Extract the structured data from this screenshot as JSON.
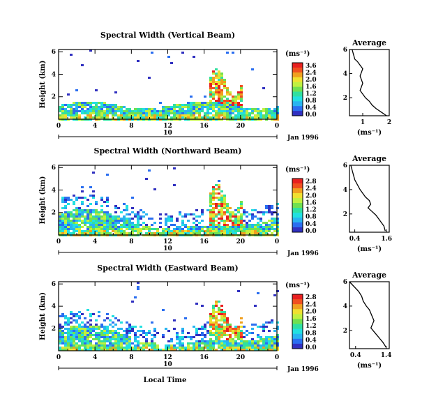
{
  "chart_data": [
    {
      "type": "heatmap",
      "title": "Spectral Width (Vertical Beam)",
      "ylabel": "Height (km)",
      "xlabel": "",
      "x_ticks": [
        "0",
        "4",
        "8",
        "12",
        "16",
        "20",
        "0"
      ],
      "y_ticks": [
        "6",
        "4",
        "2"
      ],
      "date_tick": "10",
      "date_label": "Jan 1996",
      "colorbar": {
        "unit": "(ms⁻¹)",
        "ticks": [
          "3.6",
          "2.4",
          "2.0",
          "1.6",
          "1.2",
          "0.8",
          "0.4",
          "0.0"
        ]
      },
      "average": {
        "title": "Average",
        "xlabel": "(ms⁻¹)",
        "x_ticks": [
          "1",
          "2"
        ],
        "y_ticks": [
          "6",
          "4",
          "2"
        ],
        "xlim": [
          0.5,
          2.0
        ],
        "ylim": [
          0.5,
          6.0
        ],
        "x": [
          0.6,
          0.65,
          0.7,
          0.8,
          0.9,
          1.0,
          0.95,
          0.9,
          0.95,
          1.0,
          0.95,
          0.9,
          1.0,
          1.1,
          1.25,
          1.35,
          1.5,
          1.7,
          1.9
        ],
        "y": [
          6.0,
          5.6,
          5.2,
          5.0,
          4.7,
          4.4,
          4.1,
          3.8,
          3.5,
          3.2,
          2.9,
          2.6,
          2.3,
          2.0,
          1.7,
          1.4,
          1.1,
          0.8,
          0.5
        ]
      }
    },
    {
      "type": "heatmap",
      "title": "Spectral Width (Northward Beam)",
      "ylabel": "Height (km)",
      "xlabel": "",
      "x_ticks": [
        "0",
        "4",
        "8",
        "12",
        "16",
        "20",
        "0"
      ],
      "y_ticks": [
        "6",
        "4",
        "2"
      ],
      "date_tick": "10",
      "date_label": "Jan 1996",
      "colorbar": {
        "unit": "(ms⁻¹)",
        "ticks": [
          "2.8",
          "2.4",
          "2.0",
          "1.6",
          "1.2",
          "0.8",
          "0.4",
          "0.0"
        ]
      },
      "average": {
        "title": "Average",
        "xlabel": "(ms⁻¹)",
        "x_ticks": [
          "0.4",
          "1.6"
        ],
        "y_ticks": [
          "6",
          "4",
          "2"
        ],
        "xlim": [
          0.2,
          1.7
        ],
        "ylim": [
          0.5,
          6.0
        ],
        "x": [
          0.25,
          0.3,
          0.35,
          0.4,
          0.5,
          0.6,
          0.7,
          0.8,
          0.95,
          1.0,
          0.9,
          1.05,
          1.2,
          1.3,
          1.4,
          1.5,
          1.55
        ],
        "y": [
          6.0,
          5.6,
          5.2,
          4.8,
          4.4,
          4.0,
          3.7,
          3.4,
          3.1,
          2.8,
          2.5,
          2.2,
          1.9,
          1.6,
          1.3,
          1.0,
          0.6
        ]
      }
    },
    {
      "type": "heatmap",
      "title": "Spectral Width (Eastward Beam)",
      "ylabel": "Height (km)",
      "xlabel": "Local Time",
      "x_ticks": [
        "0",
        "4",
        "8",
        "12",
        "16",
        "20",
        "0"
      ],
      "y_ticks": [
        "6",
        "4",
        "2"
      ],
      "date_tick": "10",
      "date_label": "Jan 1996",
      "colorbar": {
        "unit": "(ms⁻¹)",
        "ticks": [
          "2.8",
          "2.4",
          "2.0",
          "1.6",
          "1.2",
          "0.8",
          "0.4",
          "0.0"
        ]
      },
      "average": {
        "title": "Average",
        "xlabel": "(ms⁻¹)",
        "x_ticks": [
          "0.4",
          "1.4"
        ],
        "y_ticks": [
          "6",
          "4",
          "2"
        ],
        "xlim": [
          0.2,
          1.5
        ],
        "ylim": [
          0.5,
          6.0
        ],
        "x": [
          0.2,
          0.35,
          0.5,
          0.6,
          0.65,
          0.75,
          0.85,
          0.9,
          0.95,
          1.0,
          0.95,
          0.9,
          1.0,
          1.1,
          1.2,
          1.3,
          1.4
        ],
        "y": [
          6.0,
          5.6,
          5.2,
          4.8,
          4.4,
          4.0,
          3.7,
          3.4,
          3.1,
          2.8,
          2.5,
          2.2,
          1.9,
          1.6,
          1.3,
          1.0,
          0.6
        ]
      }
    }
  ]
}
